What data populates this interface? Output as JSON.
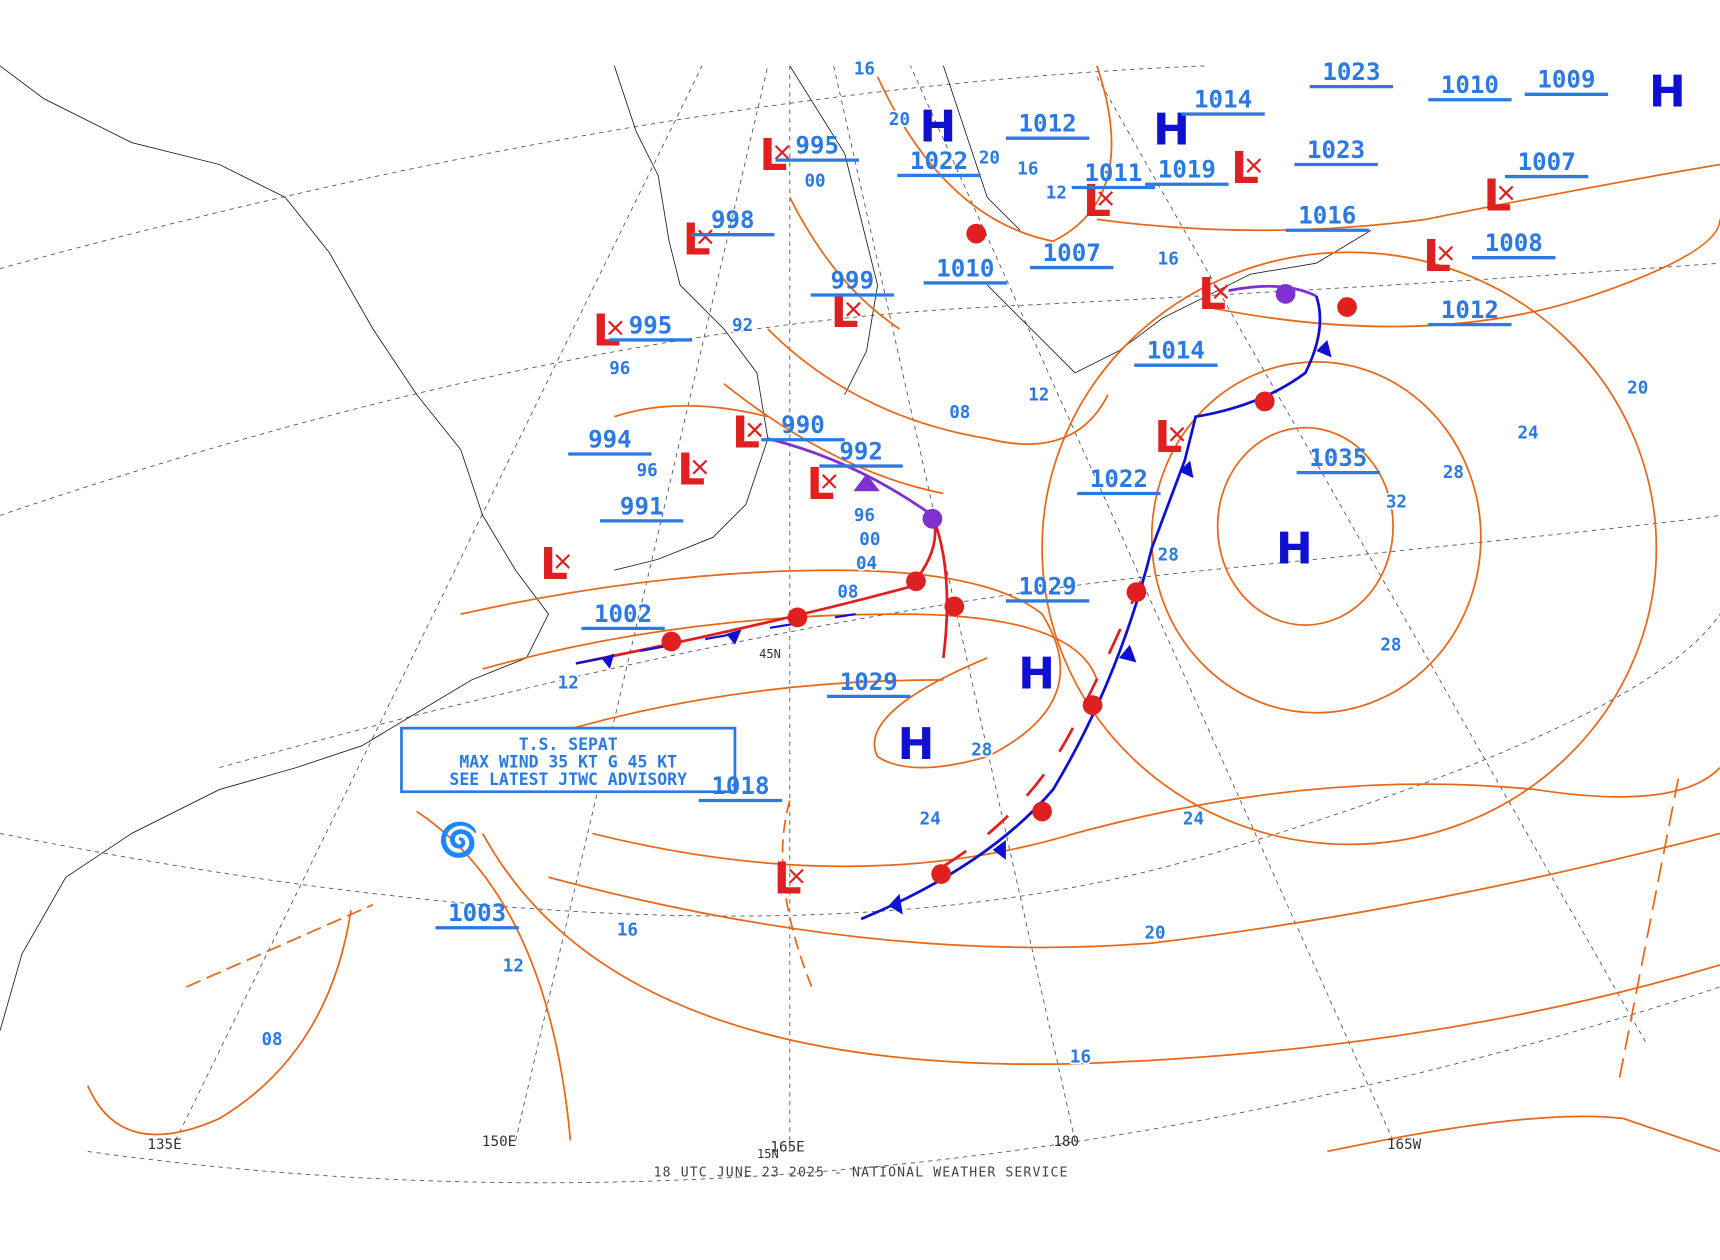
{
  "footer": "18 UTC JUNE 23 2025 - NATIONAL WEATHER SERVICE",
  "advisory": [
    "T.S. SEPAT",
    "MAX WIND 35 KT G 45 KT",
    "SEE LATEST JTWC ADVISORY"
  ],
  "centers": [
    {
      "symbol": "L",
      "pressure": "995"
    },
    {
      "symbol": "L",
      "pressure": "998"
    },
    {
      "symbol": "L",
      "pressure": "999"
    },
    {
      "symbol": "L",
      "pressure": "995"
    },
    {
      "symbol": "L",
      "pressure": "990"
    },
    {
      "symbol": "L",
      "pressure": "994"
    },
    {
      "symbol": "L",
      "pressure": "992"
    },
    {
      "symbol": "L",
      "pressure": "1002"
    },
    {
      "symbol": "H",
      "pressure": "1029"
    },
    {
      "symbol": "H",
      "pressure": "1029"
    },
    {
      "symbol": "H",
      "pressure": "1035"
    },
    {
      "symbol": "L",
      "pressure": "1022"
    },
    {
      "symbol": "L",
      "pressure": "1018"
    },
    {
      "symbol": "L",
      "pressure": "1014"
    },
    {
      "symbol": "L",
      "pressure": "1012"
    },
    {
      "symbol": "L",
      "pressure": "1008"
    },
    {
      "symbol": "L",
      "pressure": "1011"
    },
    {
      "symbol": "L",
      "pressure": "1019"
    },
    {
      "symbol": "H",
      "pressure": "1022"
    },
    {
      "symbol": "H",
      "pressure": "1014"
    },
    {
      "symbol": "H",
      "pressure": "1009"
    }
  ],
  "pressure_labels": [
    "991",
    "1003",
    "1007",
    "1010",
    "1012",
    "1016",
    "1023",
    "1007",
    "1010",
    "1023"
  ],
  "isobar_labels": [
    "16",
    "20",
    "20",
    "16",
    "12",
    "16",
    "00",
    "92",
    "96",
    "96",
    "08",
    "12",
    "96",
    "00",
    "04",
    "08",
    "28",
    "28",
    "32",
    "24",
    "20",
    "28",
    "28",
    "24",
    "24",
    "20",
    "16",
    "16",
    "12",
    "12",
    "08"
  ],
  "longitude_labels": [
    "135E",
    "150E",
    "165E",
    "180",
    "165W"
  ],
  "latitude_labels": [
    "45N",
    "15N"
  ]
}
